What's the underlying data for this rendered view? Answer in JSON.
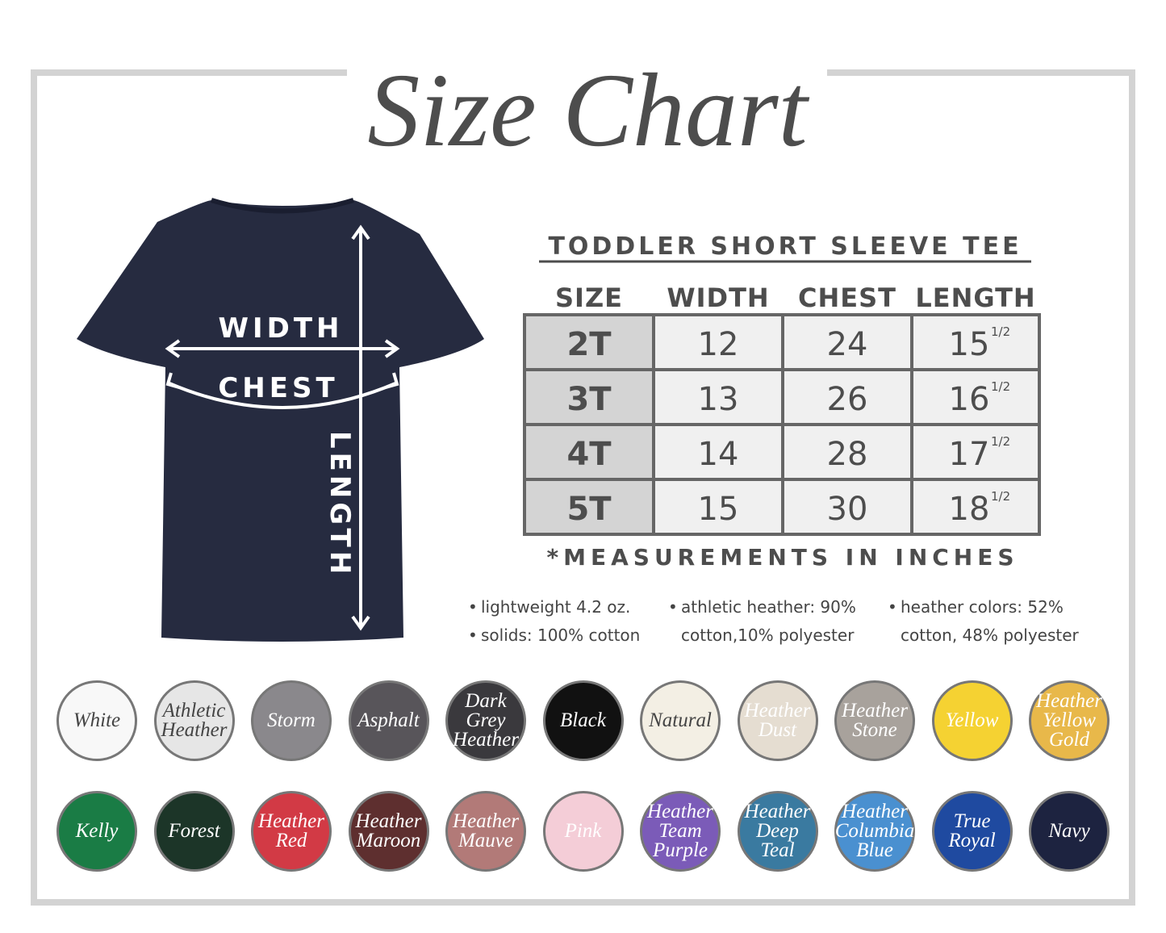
{
  "header": {
    "title": "Size Chart"
  },
  "shirt": {
    "labels": {
      "width": "WIDTH",
      "chest": "CHEST",
      "length": "LENGTH"
    }
  },
  "table": {
    "title": "TODDLER SHORT SLEEVE TEE",
    "headers": [
      "SIZE",
      "WIDTH",
      "CHEST",
      "LENGTH"
    ],
    "rows": [
      {
        "size": "2T",
        "width": "12",
        "chest": "24",
        "length": "15",
        "fraction": "1/2"
      },
      {
        "size": "3T",
        "width": "13",
        "chest": "26",
        "length": "16",
        "fraction": "1/2"
      },
      {
        "size": "4T",
        "width": "14",
        "chest": "28",
        "length": "17",
        "fraction": "1/2"
      },
      {
        "size": "5T",
        "width": "15",
        "chest": "30",
        "length": "18",
        "fraction": "1/2"
      }
    ],
    "note": "*MEASUREMENTS IN INCHES"
  },
  "specs": [
    [
      "lightweight 4.2 oz.",
      "solids: 100% cotton"
    ],
    [
      "athletic heather: 90% cotton,10% polyester"
    ],
    [
      "heather colors: 52% cotton, 48% polyester"
    ]
  ],
  "colors": [
    [
      {
        "label": "White",
        "color": "#f8f8f8",
        "text_color": "#444"
      },
      {
        "label": "Athletic Heather",
        "color": "#e6e6e6",
        "text_color": "#444"
      },
      {
        "label": "Storm",
        "color": "#8a888c",
        "text_color": "#fff"
      },
      {
        "label": "Asphalt",
        "color": "#58555a",
        "text_color": "#fff"
      },
      {
        "label": "Dark Grey Heather",
        "color": "#3a393d",
        "text_color": "#fff"
      },
      {
        "label": "Black",
        "color": "#111111",
        "text_color": "#fff"
      },
      {
        "label": "Natural",
        "color": "#f3efe4",
        "text_color": "#444"
      },
      {
        "label": "Heather Dust",
        "color": "#e5ddd1",
        "text_color": "#fff"
      },
      {
        "label": "Heather Stone",
        "color": "#a8a29c",
        "text_color": "#fff"
      },
      {
        "label": "Yellow",
        "color": "#f5d232",
        "text_color": "#fff"
      },
      {
        "label": "Heather Yellow Gold",
        "color": "#e8b84a",
        "text_color": "#fff"
      }
    ],
    [
      {
        "label": "Kelly",
        "color": "#1a7c45",
        "text_color": "#fff"
      },
      {
        "label": "Forest",
        "color": "#1c3528",
        "text_color": "#fff"
      },
      {
        "label": "Heather Red",
        "color": "#d23a45",
        "text_color": "#fff"
      },
      {
        "label": "Heather Maroon",
        "color": "#5e2f2f",
        "text_color": "#fff"
      },
      {
        "label": "Heather Mauve",
        "color": "#b27a78",
        "text_color": "#fff"
      },
      {
        "label": "Pink",
        "color": "#f4cdd7",
        "text_color": "#fff"
      },
      {
        "label": "Heather Team Purple",
        "color": "#7b5bb8",
        "text_color": "#fff"
      },
      {
        "label": "Heather Deep Teal",
        "color": "#3a7aa0",
        "text_color": "#fff"
      },
      {
        "label": "Heather Columbia Blue",
        "color": "#4a90d0",
        "text_color": "#fff"
      },
      {
        "label": "True Royal",
        "color": "#1f4aa0",
        "text_color": "#fff"
      },
      {
        "label": "Navy",
        "color": "#1d2340",
        "text_color": "#fff"
      }
    ]
  ]
}
